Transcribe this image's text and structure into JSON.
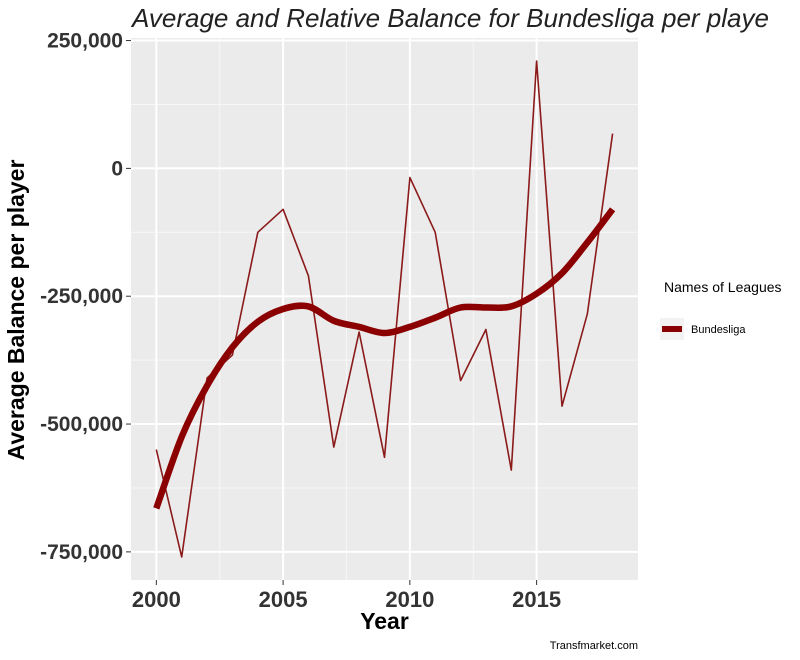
{
  "chart_data": {
    "type": "line",
    "title": "Average and Relative  Balance for Bundesliga  per playe",
    "xlabel": "Year",
    "ylabel": "Average Balance  per player",
    "xlim": [
      1999.0,
      2019.0
    ],
    "ylim": [
      -805000,
      255000
    ],
    "x_ticks": [
      2000,
      2005,
      2010,
      2015
    ],
    "x_tick_labels": [
      "2000",
      "2005",
      "2010",
      "2015"
    ],
    "y_ticks": [
      250000,
      0,
      -250000,
      -500000,
      -750000
    ],
    "y_tick_labels": [
      "250,000",
      "0",
      "-250,000",
      "-500,000",
      "-750,000"
    ],
    "grid": true,
    "legend": {
      "title": "Names of Leagues",
      "position": "right",
      "entries": [
        "Bundesliga"
      ]
    },
    "caption": "Transfmarket.com",
    "series": [
      {
        "name": "Bundesliga",
        "color": "#8b1a1a",
        "x": [
          2000,
          2001,
          2002,
          2003,
          2004,
          2005,
          2006,
          2007,
          2008,
          2009,
          2010,
          2011,
          2012,
          2013,
          2014,
          2015,
          2016,
          2017,
          2018
        ],
        "values": [
          -550000,
          -760000,
          -410000,
          -365000,
          -125000,
          -80000,
          -210000,
          -545000,
          -320000,
          -565000,
          -18000,
          -125000,
          -415000,
          -315000,
          -590000,
          210000,
          -465000,
          -285000,
          68000
        ]
      },
      {
        "name": "Bundesliga",
        "color": "#8b0000",
        "x": [
          2000,
          2001,
          2002,
          2003,
          2004,
          2005,
          2006,
          2007,
          2008,
          2009,
          2010,
          2011,
          2012,
          2013,
          2014,
          2015,
          2016,
          2017,
          2018
        ],
        "values": [
          -665000,
          -525000,
          -425000,
          -350000,
          -300000,
          -275000,
          -270000,
          -298000,
          -310000,
          -322000,
          -310000,
          -292000,
          -272000,
          -272000,
          -270000,
          -245000,
          -205000,
          -145000,
          -80000
        ]
      }
    ]
  }
}
